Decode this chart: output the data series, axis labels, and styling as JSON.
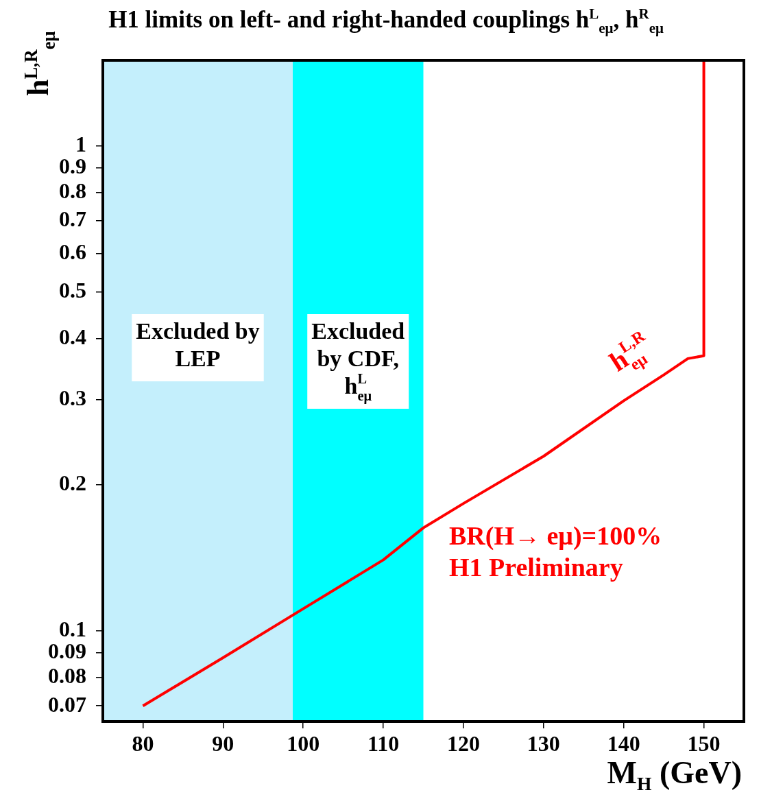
{
  "chart_data": {
    "type": "line",
    "title": "H1 limits on left- and right-handed couplings h$^{L}$$_{eμ}$, h$^{R}$$_{eμ}$",
    "xlabel": "M$_{H}$ (GeV)",
    "ylabel": "h$^{L,R}$$_{eμ}$",
    "xlim": [
      75,
      155
    ],
    "xticks": [
      80,
      90,
      100,
      110,
      120,
      130,
      140,
      150
    ],
    "ylim": [
      0.065,
      1.5
    ],
    "yticks": [
      0.07,
      0.08,
      0.09,
      0.1,
      0.2,
      0.3,
      0.4,
      0.5,
      0.6,
      0.7,
      0.8,
      0.9,
      1
    ],
    "log": "y",
    "grid": false,
    "legend": false,
    "marker": "none",
    "line_style": "solid",
    "series": [
      {
        "name": "h$^{L,R}$$_{eμ}$",
        "color": "#ff0000",
        "x": [
          80,
          90,
          100,
          110,
          115,
          120,
          130,
          140,
          145,
          148,
          150,
          150
        ],
        "values": [
          0.07,
          0.088,
          0.111,
          0.14,
          0.163,
          0.183,
          0.229,
          0.298,
          0.337,
          0.364,
          0.369,
          1.5
        ]
      }
    ],
    "bands": [
      {
        "axis": "x",
        "from": 75,
        "to": 98.7,
        "label": "Excluded by LEP",
        "color": "#c4effc"
      },
      {
        "axis": "x",
        "from": 98.7,
        "to": 115,
        "label": "Excluded by CDF, h$^{L}$$_{eμ}$",
        "color": "#00ffff"
      }
    ],
    "annotations": [
      "BR(H→ eμ)=100%",
      "H1 Preliminary"
    ]
  }
}
